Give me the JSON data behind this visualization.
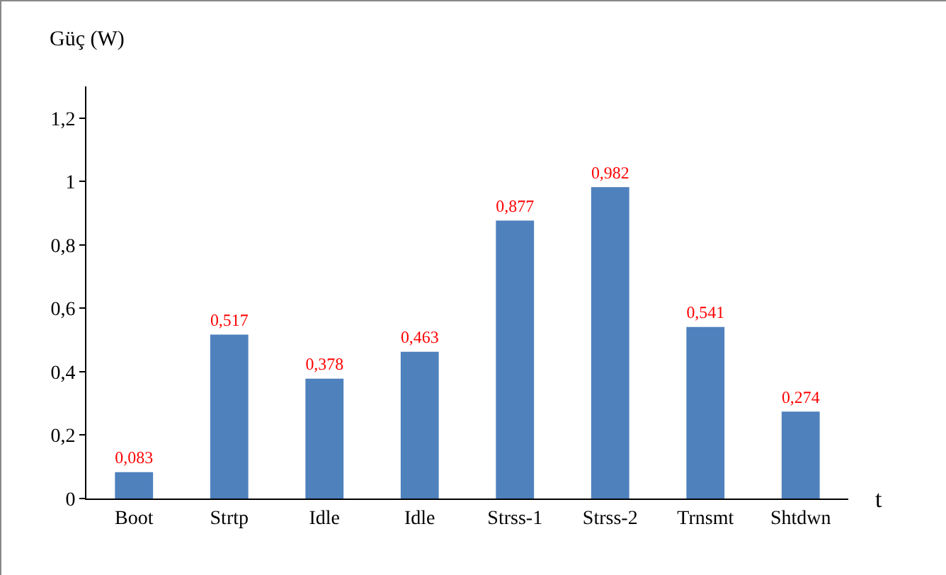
{
  "chart_data": {
    "type": "bar",
    "xlabel": "t",
    "ylabel": "Güç (W)",
    "categories": [
      "Boot",
      "Strtp",
      "Idle",
      "Idle",
      "Strss-1",
      "Strss-2",
      "Trnsmt",
      "Shtdwn"
    ],
    "values": [
      0.083,
      0.517,
      0.378,
      0.463,
      0.877,
      0.982,
      0.541,
      0.274
    ],
    "value_labels": [
      "0,083",
      "0,517",
      "0,378",
      "0,463",
      "0,877",
      "0,982",
      "0,541",
      "0,274"
    ],
    "color": "#4f81bd",
    "ylim": [
      0,
      1.3
    ],
    "yticks": [
      {
        "value": 0,
        "label": "0"
      },
      {
        "value": 0.2,
        "label": "0,2"
      },
      {
        "value": 0.4,
        "label": "0,4"
      },
      {
        "value": 0.6,
        "label": "0,6"
      },
      {
        "value": 0.8,
        "label": "0,8"
      },
      {
        "value": 1,
        "label": "1"
      },
      {
        "value": 1.2,
        "label": "1,2"
      }
    ],
    "grid": false,
    "legend": false
  }
}
